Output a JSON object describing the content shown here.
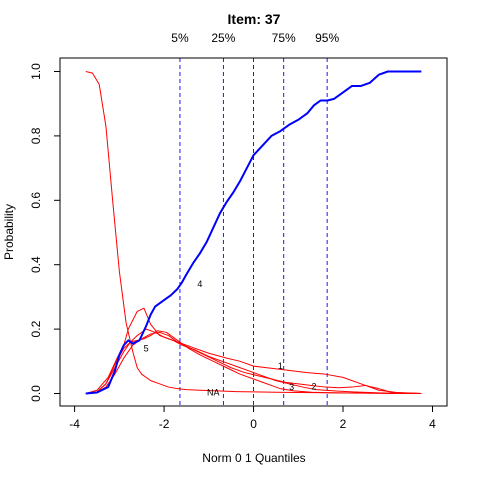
{
  "chart_data": {
    "type": "line",
    "title": "Item:  37",
    "xlabel": "Norm 0 1 Quantiles",
    "ylabel": "Probability",
    "xlim": [
      -4,
      4
    ],
    "ylim": [
      0,
      1
    ],
    "xticks": [
      -4,
      -2,
      0,
      2,
      4
    ],
    "yticks": [
      0.0,
      0.2,
      0.4,
      0.6,
      0.8,
      1.0
    ],
    "ytick_labels": [
      "0.0",
      "0.2",
      "0.4",
      "0.6",
      "0.8",
      "1.0"
    ],
    "grid": false,
    "legend": "none",
    "quantile_lines": [
      {
        "label": "5%",
        "x": -1.645
      },
      {
        "label": "25%",
        "x": -0.674
      },
      {
        "label": "",
        "x": 0.0
      },
      {
        "label": "75%",
        "x": 0.674
      },
      {
        "label": "95%",
        "x": 1.645
      }
    ],
    "series": [
      {
        "label": "4",
        "color": "#0000ff",
        "width": 2,
        "label_at": [
          -1.2,
          0.34
        ],
        "x": [
          -3.75,
          -3.5,
          -3.25,
          -3.1,
          -3.0,
          -2.9,
          -2.8,
          -2.7,
          -2.55,
          -2.4,
          -2.3,
          -2.2,
          -2.0,
          -1.85,
          -1.7,
          -1.6,
          -1.5,
          -1.35,
          -1.2,
          -1.05,
          -0.9,
          -0.75,
          -0.6,
          -0.45,
          -0.3,
          -0.15,
          0.0,
          0.2,
          0.4,
          0.6,
          0.8,
          1.0,
          1.2,
          1.35,
          1.5,
          1.65,
          1.8,
          2.0,
          2.2,
          2.4,
          2.6,
          2.8,
          3.0,
          3.2,
          3.75
        ],
        "y": [
          0.0,
          0.003,
          0.02,
          0.07,
          0.12,
          0.15,
          0.165,
          0.155,
          0.165,
          0.21,
          0.245,
          0.27,
          0.29,
          0.305,
          0.325,
          0.345,
          0.37,
          0.405,
          0.435,
          0.47,
          0.515,
          0.56,
          0.595,
          0.625,
          0.66,
          0.7,
          0.74,
          0.77,
          0.8,
          0.815,
          0.835,
          0.85,
          0.87,
          0.895,
          0.91,
          0.91,
          0.915,
          0.935,
          0.955,
          0.955,
          0.965,
          0.99,
          1.0,
          1.0,
          1.0
        ]
      },
      {
        "label": "5",
        "color": "#ff0000",
        "width": 1,
        "label_at": [
          -2.4,
          0.14
        ],
        "x": [
          -3.75,
          -3.6,
          -3.45,
          -3.3,
          -3.15,
          -3.0,
          -2.85,
          -2.7,
          -2.6,
          -2.5,
          -2.3,
          -2.1,
          -1.9,
          -1.7,
          -1.5,
          -1.2,
          -0.8,
          -0.4,
          0.0,
          0.5,
          1.0,
          2.0,
          3.0,
          3.75
        ],
        "y": [
          1.0,
          0.995,
          0.96,
          0.83,
          0.6,
          0.38,
          0.22,
          0.13,
          0.08,
          0.06,
          0.04,
          0.03,
          0.02,
          0.015,
          0.012,
          0.01,
          0.008,
          0.006,
          0.005,
          0.004,
          0.003,
          0.002,
          0.001,
          0.0
        ]
      },
      {
        "label": "1",
        "color": "#ff0000",
        "width": 1,
        "label_at": [
          0.6,
          0.085
        ],
        "x": [
          -3.75,
          -3.5,
          -3.25,
          -3.05,
          -2.9,
          -2.8,
          -2.6,
          -2.45,
          -2.3,
          -2.1,
          -1.9,
          -1.6,
          -1.3,
          -1.0,
          -0.6,
          -0.3,
          0.0,
          0.3,
          0.6,
          0.9,
          1.2,
          1.6,
          2.0,
          2.4,
          2.8,
          3.2,
          3.75
        ],
        "y": [
          0.0,
          0.01,
          0.05,
          0.11,
          0.15,
          0.2,
          0.255,
          0.265,
          0.215,
          0.18,
          0.17,
          0.155,
          0.14,
          0.125,
          0.11,
          0.1,
          0.085,
          0.08,
          0.075,
          0.07,
          0.065,
          0.06,
          0.05,
          0.03,
          0.01,
          0.003,
          0.0
        ]
      },
      {
        "label": "3",
        "color": "#ff0000",
        "width": 1,
        "label_at": [
          0.85,
          0.02
        ],
        "x": [
          -3.75,
          -3.5,
          -3.3,
          -3.1,
          -2.9,
          -2.75,
          -2.6,
          -2.4,
          -2.2,
          -2.0,
          -1.8,
          -1.6,
          -1.3,
          -1.0,
          -0.7,
          -0.4,
          -0.1,
          0.2,
          0.5,
          0.8,
          1.1,
          1.4,
          1.8,
          2.2,
          2.6,
          3.0,
          3.75
        ],
        "y": [
          0.0,
          0.005,
          0.03,
          0.08,
          0.13,
          0.16,
          0.18,
          0.2,
          0.19,
          0.175,
          0.165,
          0.15,
          0.135,
          0.115,
          0.1,
          0.085,
          0.07,
          0.055,
          0.04,
          0.03,
          0.02,
          0.012,
          0.008,
          0.005,
          0.003,
          0.001,
          0.0
        ]
      },
      {
        "label": "2",
        "color": "#ff0000",
        "width": 1,
        "label_at": [
          1.35,
          0.022
        ],
        "x": [
          -3.75,
          -3.5,
          -3.3,
          -3.1,
          -2.9,
          -2.7,
          -2.5,
          -2.3,
          -2.1,
          -1.9,
          -1.7,
          -1.4,
          -1.1,
          -0.8,
          -0.5,
          -0.2,
          0.1,
          0.4,
          0.7,
          1.0,
          1.3,
          1.6,
          1.9,
          2.2,
          2.5,
          2.8,
          3.1,
          3.75
        ],
        "y": [
          0.0,
          0.004,
          0.02,
          0.06,
          0.11,
          0.15,
          0.17,
          0.185,
          0.19,
          0.18,
          0.16,
          0.14,
          0.12,
          0.1,
          0.08,
          0.065,
          0.055,
          0.045,
          0.035,
          0.03,
          0.025,
          0.02,
          0.018,
          0.02,
          0.025,
          0.015,
          0.003,
          0.0
        ]
      },
      {
        "label": "NA",
        "color": "#ff0000",
        "width": 1,
        "label_at": [
          -0.9,
          0.003
        ],
        "x": [
          -3.75,
          -3.5,
          -3.3,
          -3.1,
          -2.9,
          -2.75,
          -2.6,
          -2.45,
          -2.3,
          -2.15,
          -1.95,
          -1.7,
          -1.45,
          -1.2,
          -0.9,
          -0.6,
          -0.3,
          0.0,
          0.2,
          0.4,
          0.6,
          0.9,
          1.3,
          1.8,
          2.4,
          3.0,
          3.75
        ],
        "y": [
          0.0,
          0.005,
          0.03,
          0.09,
          0.14,
          0.16,
          0.165,
          0.17,
          0.18,
          0.195,
          0.19,
          0.165,
          0.14,
          0.12,
          0.1,
          0.08,
          0.06,
          0.045,
          0.035,
          0.025,
          0.015,
          0.008,
          0.004,
          0.002,
          0.001,
          0.0,
          0.0
        ]
      }
    ]
  }
}
